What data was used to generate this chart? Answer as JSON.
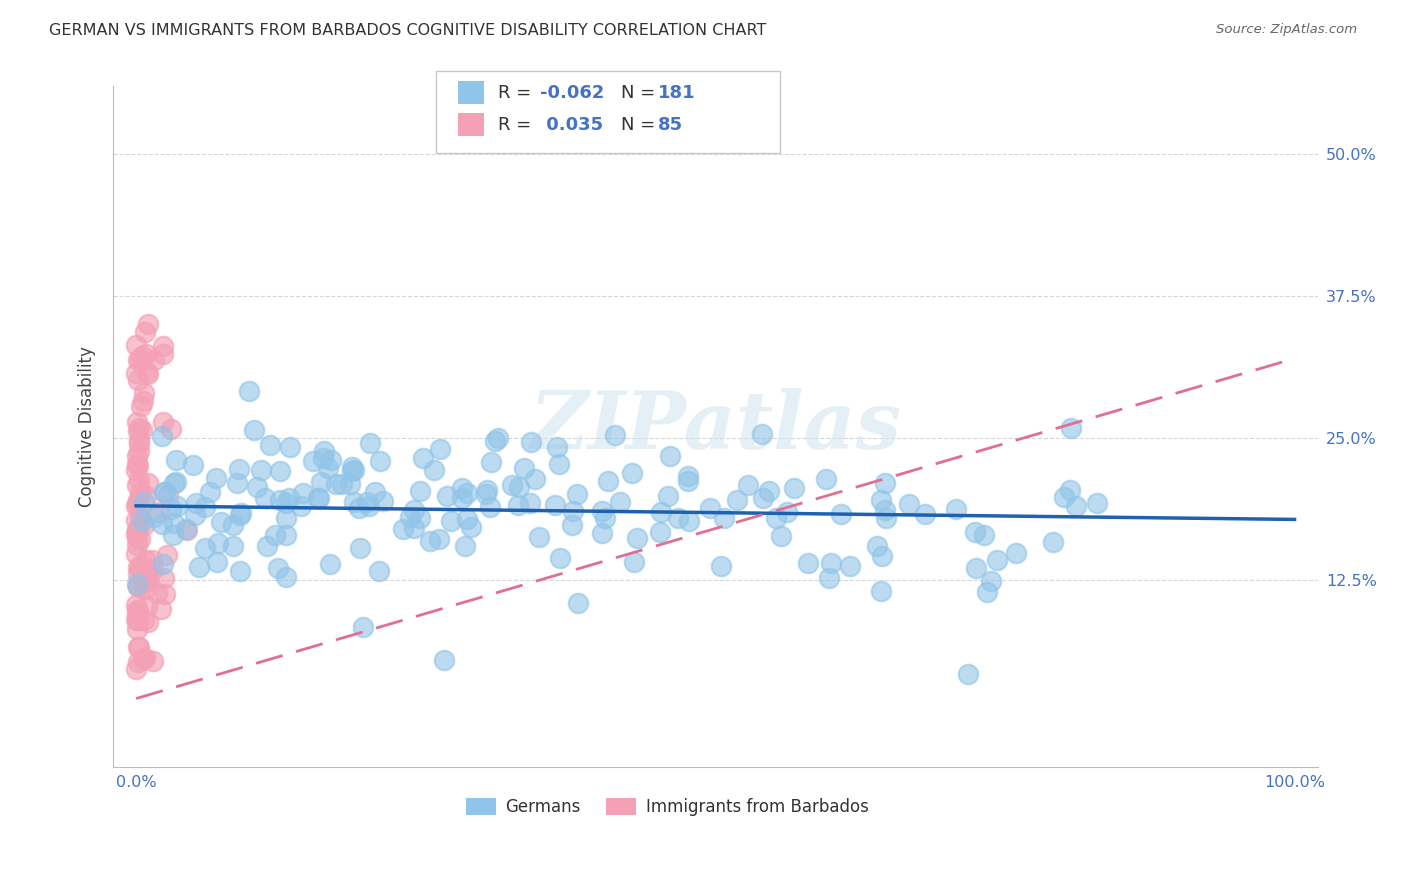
{
  "title": "GERMAN VS IMMIGRANTS FROM BARBADOS COGNITIVE DISABILITY CORRELATION CHART",
  "source": "Source: ZipAtlas.com",
  "ylabel": "Cognitive Disability",
  "watermark": "ZIPatlas",
  "blue_color": "#90c4e8",
  "pink_color": "#f4a0b5",
  "blue_line_color": "#2060b0",
  "pink_line_color": "#e07090",
  "tick_color": "#4472c4",
  "grid_color": "#cccccc",
  "background_color": "#ffffff",
  "blue_R": -0.062,
  "blue_N": 181,
  "pink_R": 0.035,
  "pink_N": 85,
  "blue_intercept": 0.19,
  "blue_slope": -0.012,
  "pink_intercept": 0.02,
  "pink_slope": 0.3,
  "xlim": [
    -0.02,
    1.02
  ],
  "ylim": [
    -0.04,
    0.56
  ],
  "ytick_vals": [
    0.0,
    0.125,
    0.25,
    0.375,
    0.5
  ],
  "ytick_labs": [
    "",
    "12.5%",
    "25.0%",
    "37.5%",
    "50.0%"
  ],
  "xtick_vals": [
    0.0,
    0.25,
    0.5,
    0.75,
    1.0
  ],
  "xtick_labs": [
    "0.0%",
    "",
    "",
    "",
    "100.0%"
  ]
}
